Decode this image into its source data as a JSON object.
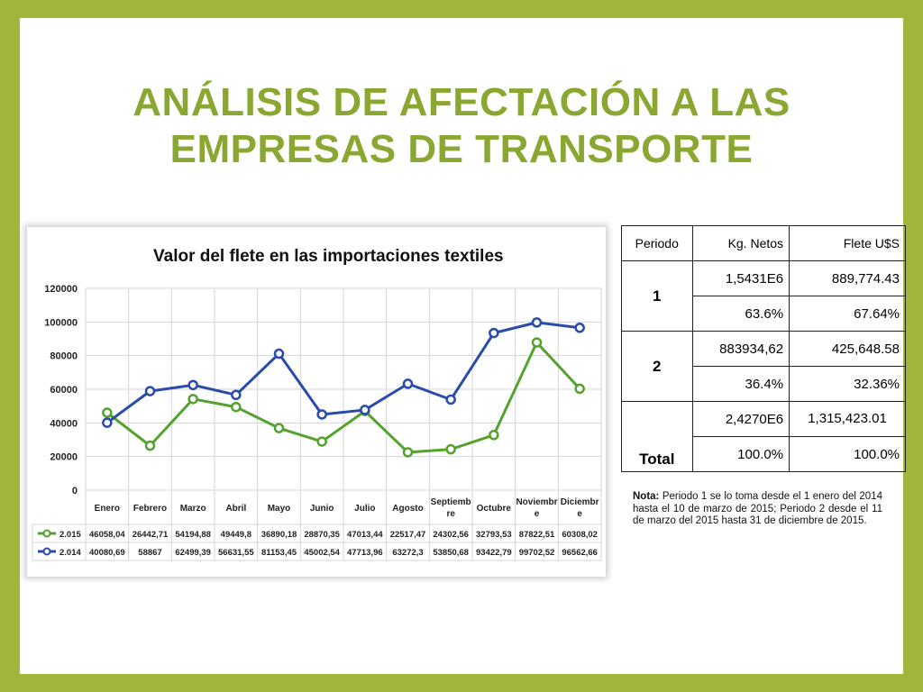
{
  "slide": {
    "title_line1": "ANÁLISIS DE AFECTACIÓN A LAS",
    "title_line2": "EMPRESAS DE TRANSPORTE"
  },
  "colors": {
    "background": "#a2b53a",
    "title": "#8aa732",
    "series_2015": "#54a22e",
    "series_2014": "#2a4ba8"
  },
  "chart_data": {
    "type": "line",
    "title": "Valor del flete en las importaciones textiles",
    "categories": [
      "Enero",
      "Febrero",
      "Marzo",
      "Abril",
      "Mayo",
      "Junio",
      "Julio",
      "Agosto",
      "Septiembre",
      "Octubre",
      "Noviembre",
      "Diciembre"
    ],
    "category_labels": [
      [
        "Enero"
      ],
      [
        "Febrero"
      ],
      [
        "Marzo"
      ],
      [
        "Abril"
      ],
      [
        "Mayo"
      ],
      [
        "Junio"
      ],
      [
        "Julio"
      ],
      [
        "Agosto"
      ],
      [
        "Septiemb",
        "re"
      ],
      [
        "Octubre"
      ],
      [
        "Noviembr",
        "e"
      ],
      [
        "Diciembr",
        "e"
      ]
    ],
    "yticks": [
      "0",
      "20000",
      "40000",
      "60000",
      "80000",
      "100000",
      "120000"
    ],
    "ylim": [
      0,
      120000
    ],
    "grid": true,
    "legend": "data-table-below",
    "series": [
      {
        "name": "2.015",
        "color": "#54a22e",
        "values": [
          46058.04,
          26442.71,
          54194.88,
          49449.8,
          36890.18,
          28870.35,
          47013.44,
          22517.47,
          24302.56,
          32793.53,
          87822.51,
          60308.02
        ],
        "labels": [
          "46058,04",
          "26442,71",
          "54194,88",
          "49449,8",
          "36890,18",
          "28870,35",
          "47013,44",
          "22517,47",
          "24302,56",
          "32793,53",
          "87822,51",
          "60308,02"
        ]
      },
      {
        "name": "2.014",
        "color": "#2a4ba8",
        "values": [
          40080.69,
          58867,
          62499.39,
          56631.55,
          81153.45,
          45002.54,
          47713.96,
          63272.3,
          53850.68,
          93422.79,
          99702.52,
          96562.66
        ],
        "labels": [
          "40080,69",
          "58867",
          "62499,39",
          "56631,55",
          "81153,45",
          "45002,54",
          "47713,96",
          "63272,3",
          "53850,68",
          "93422,79",
          "99702,52",
          "96562,66"
        ]
      }
    ]
  },
  "table": {
    "headers": [
      "Periodo",
      "Kg. Netos",
      "Flete U$S"
    ],
    "rows": [
      {
        "periodo": "1",
        "kg": "1,5431E6",
        "flete": "889,774.43",
        "kg_pct": "63.6%",
        "flete_pct": "67.64%"
      },
      {
        "periodo": "2",
        "kg": "883934,62",
        "flete": "425,648.58",
        "kg_pct": "36.4%",
        "flete_pct": "32.36%"
      },
      {
        "periodo": "Total",
        "kg": "2,4270E6",
        "flete": "1,315,423.01",
        "kg_pct": "100.0%",
        "flete_pct": "100.0%"
      }
    ]
  },
  "nota": {
    "label": "Nota:",
    "text": "Periodo 1 se lo toma desde el 1 enero del 2014 hasta el 10 de marzo de 2015; Periodo 2 desde el 11 de marzo del 2015 hasta 31 de diciembre de 2015."
  }
}
